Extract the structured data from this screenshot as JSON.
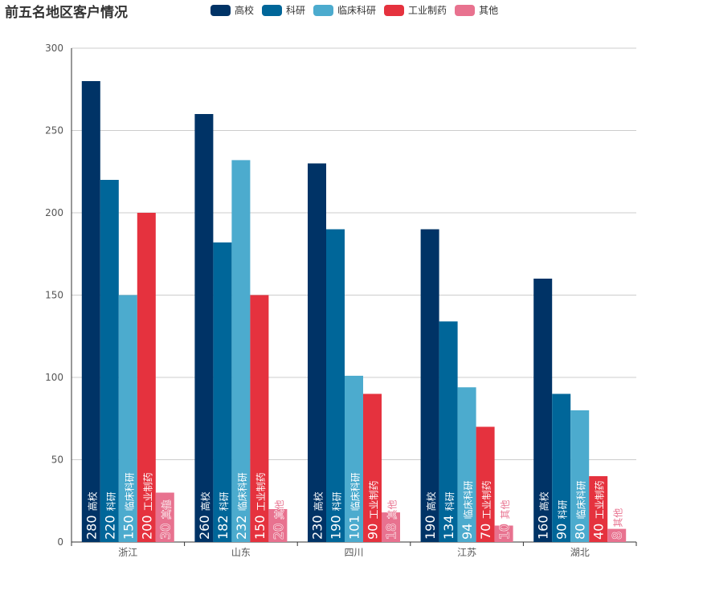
{
  "title": "前五名地区客户情况",
  "legend": [
    {
      "name": "高校",
      "color": "#003366"
    },
    {
      "name": "科研",
      "color": "#006699"
    },
    {
      "name": "临床科研",
      "color": "#4cabce"
    },
    {
      "name": "工业制药",
      "color": "#e5323e"
    },
    {
      "name": "其他",
      "color": "#e8728f"
    }
  ],
  "chart_data": {
    "type": "bar",
    "title": "前五名地区客户情况",
    "xlabel": "",
    "ylabel": "",
    "categories": [
      "浙江",
      "山东",
      "四川",
      "江苏",
      "湖北"
    ],
    "series": [
      {
        "name": "高校",
        "color": "#003366",
        "values": [
          280,
          260,
          230,
          190,
          160
        ]
      },
      {
        "name": "科研",
        "color": "#006699",
        "values": [
          220,
          182,
          190,
          134,
          90
        ]
      },
      {
        "name": "临床科研",
        "color": "#4cabce",
        "values": [
          150,
          232,
          101,
          94,
          80
        ]
      },
      {
        "name": "工业制药",
        "color": "#e5323e",
        "values": [
          200,
          150,
          90,
          70,
          40
        ]
      },
      {
        "name": "其他",
        "color": "#e8728f",
        "values": [
          30,
          20,
          18,
          10,
          8
        ]
      }
    ],
    "ylim": [
      0,
      300
    ],
    "yticks": [
      0,
      50,
      100,
      150,
      200,
      250,
      300
    ],
    "grid": true,
    "legend_position": "top",
    "data_labels": "value + series name, rotated vertical, at bar base"
  }
}
